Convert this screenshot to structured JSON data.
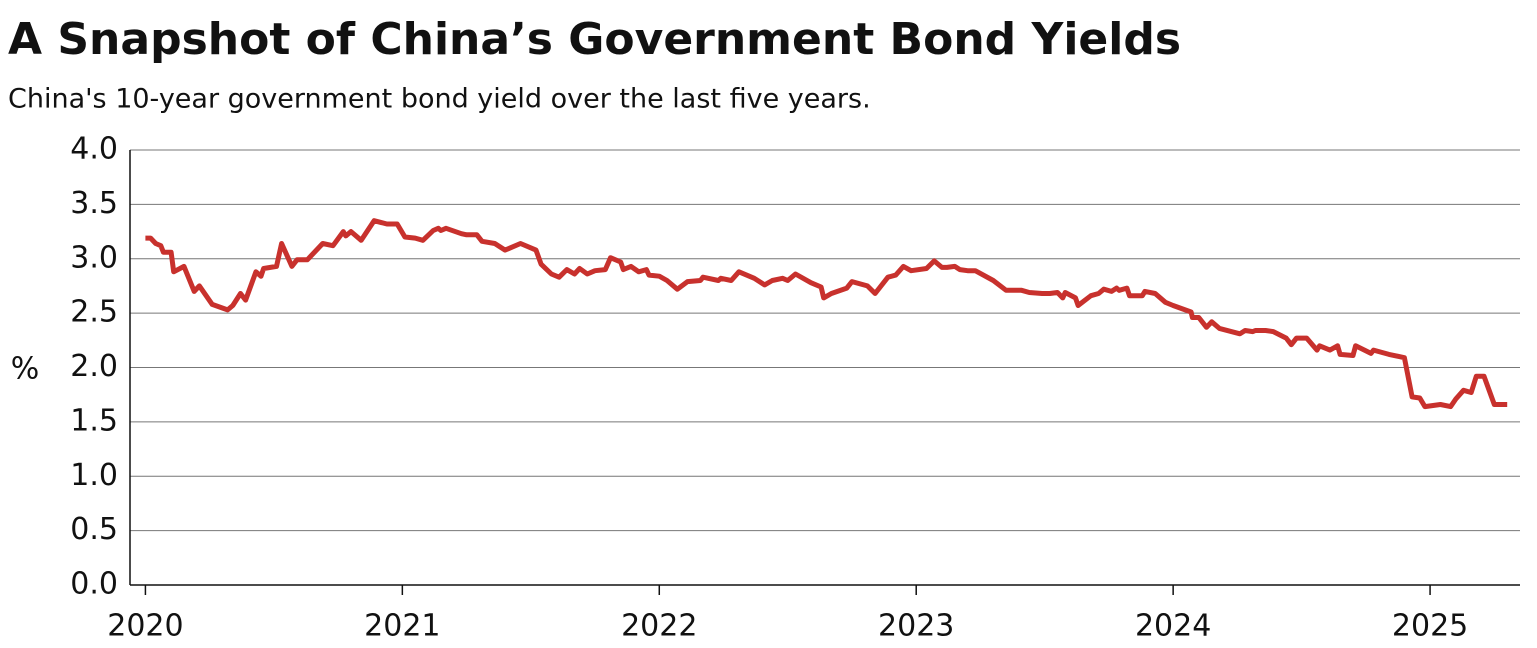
{
  "chart_data": {
    "type": "line",
    "title": "A Snapshot of China’s Government Bond Yields",
    "subtitle": "China's 10-year government bond yield over the last five years.",
    "y_label": "%",
    "xlim": [
      2019.94,
      2025.35
    ],
    "xticks": [
      2020,
      2021,
      2022,
      2023,
      2024,
      2025
    ],
    "ylim": [
      0,
      4
    ],
    "yticks": [
      {
        "value": 0,
        "label": "0.0"
      },
      0.5,
      {
        "value": 1,
        "label": "1.0"
      },
      1.5,
      {
        "value": 2,
        "label": "2.0"
      },
      2.5,
      {
        "value": 3,
        "label": "3.0"
      },
      3.5,
      {
        "value": 4,
        "label": "4.0"
      }
    ],
    "grid": true,
    "x": [
      2020.0,
      2020.02,
      2020.04,
      2020.06,
      2020.07,
      2020.1,
      2020.11,
      2020.15,
      2020.19,
      2020.21,
      2020.26,
      2020.32,
      2020.34,
      2020.37,
      2020.39,
      2020.43,
      2020.45,
      2020.46,
      2020.51,
      2020.53,
      2020.57,
      2020.59,
      2020.63,
      2020.69,
      2020.73,
      2020.77,
      2020.78,
      2020.8,
      2020.84,
      2020.89,
      2020.94,
      2020.98,
      2021.01,
      2021.05,
      2021.08,
      2021.12,
      2021.14,
      2021.15,
      2021.17,
      2021.23,
      2021.25,
      2021.29,
      2021.31,
      2021.36,
      2021.4,
      2021.46,
      2021.52,
      2021.54,
      2021.58,
      2021.61,
      2021.64,
      2021.67,
      2021.69,
      2021.72,
      2021.75,
      2021.79,
      2021.81,
      2021.85,
      2021.86,
      2021.89,
      2021.92,
      2021.95,
      2021.96,
      2022.0,
      2022.03,
      2022.07,
      2022.11,
      2022.16,
      2022.17,
      2022.23,
      2022.24,
      2022.28,
      2022.31,
      2022.37,
      2022.41,
      2022.44,
      2022.48,
      2022.5,
      2022.53,
      2022.59,
      2022.63,
      2022.64,
      2022.67,
      2022.73,
      2022.75,
      2022.81,
      2022.84,
      2022.89,
      2022.92,
      2022.95,
      2022.98,
      2023.04,
      2023.07,
      2023.1,
      2023.12,
      2023.15,
      2023.17,
      2023.2,
      2023.23,
      2023.3,
      2023.35,
      2023.41,
      2023.44,
      2023.49,
      2023.52,
      2023.55,
      2023.57,
      2023.58,
      2023.62,
      2023.63,
      2023.68,
      2023.71,
      2023.73,
      2023.76,
      2023.78,
      2023.79,
      2023.82,
      2023.83,
      2023.88,
      2023.89,
      2023.93,
      2023.97,
      2024.0,
      2024.07,
      2024.075,
      2024.1,
      2024.13,
      2024.15,
      2024.18,
      2024.26,
      2024.28,
      2024.31,
      2024.32,
      2024.36,
      2024.39,
      2024.44,
      2024.46,
      2024.48,
      2024.52,
      2024.56,
      2024.57,
      2024.61,
      2024.64,
      2024.65,
      2024.7,
      2024.71,
      2024.77,
      2024.78,
      2024.84,
      2024.9,
      2024.93,
      2024.96,
      2024.98,
      2025.04,
      2025.08,
      2025.1,
      2025.13,
      2025.16,
      2025.18,
      2025.21,
      2025.25,
      2025.3
    ],
    "series": [
      {
        "name": "China 10-year government bond yield",
        "color": "#c8312d",
        "values": [
          3.19,
          3.19,
          3.14,
          3.12,
          3.06,
          3.06,
          2.88,
          2.93,
          2.7,
          2.75,
          2.58,
          2.53,
          2.57,
          2.68,
          2.62,
          2.88,
          2.84,
          2.91,
          2.93,
          3.14,
          2.93,
          2.99,
          2.99,
          3.14,
          3.12,
          3.25,
          3.21,
          3.25,
          3.17,
          3.35,
          3.32,
          3.32,
          3.2,
          3.19,
          3.17,
          3.26,
          3.28,
          3.26,
          3.28,
          3.23,
          3.22,
          3.22,
          3.16,
          3.14,
          3.08,
          3.14,
          3.08,
          2.95,
          2.86,
          2.83,
          2.9,
          2.86,
          2.91,
          2.86,
          2.89,
          2.9,
          3.01,
          2.97,
          2.9,
          2.93,
          2.88,
          2.9,
          2.85,
          2.84,
          2.8,
          2.72,
          2.79,
          2.8,
          2.83,
          2.8,
          2.82,
          2.8,
          2.88,
          2.82,
          2.76,
          2.8,
          2.82,
          2.8,
          2.86,
          2.78,
          2.74,
          2.64,
          2.68,
          2.73,
          2.79,
          2.75,
          2.68,
          2.83,
          2.85,
          2.93,
          2.89,
          2.91,
          2.98,
          2.92,
          2.92,
          2.93,
          2.9,
          2.89,
          2.89,
          2.8,
          2.71,
          2.71,
          2.69,
          2.68,
          2.68,
          2.69,
          2.64,
          2.69,
          2.64,
          2.57,
          2.66,
          2.68,
          2.72,
          2.7,
          2.73,
          2.71,
          2.73,
          2.66,
          2.66,
          2.7,
          2.68,
          2.6,
          2.57,
          2.51,
          2.46,
          2.46,
          2.37,
          2.42,
          2.36,
          2.31,
          2.34,
          2.33,
          2.34,
          2.34,
          2.33,
          2.27,
          2.21,
          2.27,
          2.27,
          2.16,
          2.2,
          2.16,
          2.2,
          2.12,
          2.11,
          2.2,
          2.13,
          2.16,
          2.12,
          2.09,
          1.73,
          1.72,
          1.64,
          1.66,
          1.64,
          1.71,
          1.79,
          1.77,
          1.92,
          1.92,
          1.66,
          1.66
        ]
      }
    ]
  }
}
